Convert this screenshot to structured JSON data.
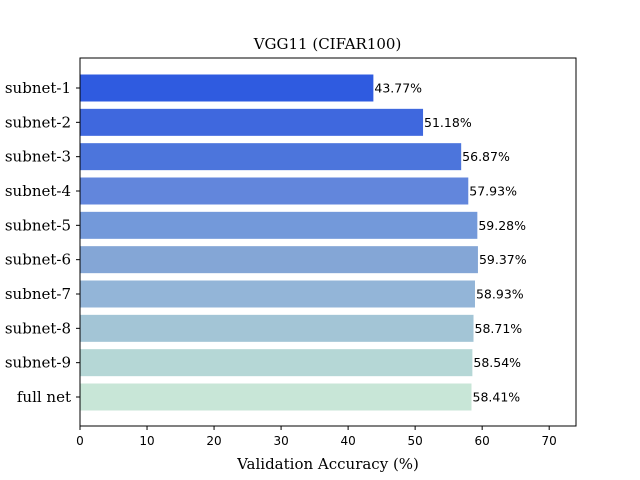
{
  "chart_data": {
    "type": "bar",
    "orientation": "horizontal",
    "title": "VGG11 (CIFAR100)",
    "xlabel": "Validation Accuracy (%)",
    "ylabel": "",
    "xlim": [
      0,
      74
    ],
    "xticks": [
      0,
      10,
      20,
      30,
      40,
      50,
      60,
      70
    ],
    "grid": false,
    "legend": "none",
    "categories": [
      "subnet-1",
      "subnet-2",
      "subnet-3",
      "subnet-4",
      "subnet-5",
      "subnet-6",
      "subnet-7",
      "subnet-8",
      "subnet-9",
      "full net"
    ],
    "values": [
      43.77,
      51.18,
      56.87,
      57.93,
      59.28,
      59.37,
      58.93,
      58.71,
      58.54,
      58.41
    ],
    "value_labels": [
      "43.77%",
      "51.18%",
      "56.87%",
      "57.93%",
      "59.28%",
      "59.37%",
      "58.93%",
      "58.71%",
      "58.54%",
      "58.41%"
    ],
    "colors": [
      "#2f5be0",
      "#3f68de",
      "#4c75dc",
      "#6286dc",
      "#7399da",
      "#84a6d6",
      "#93b5d8",
      "#a3c5d6",
      "#b5d7d6",
      "#c8e6d7"
    ]
  }
}
